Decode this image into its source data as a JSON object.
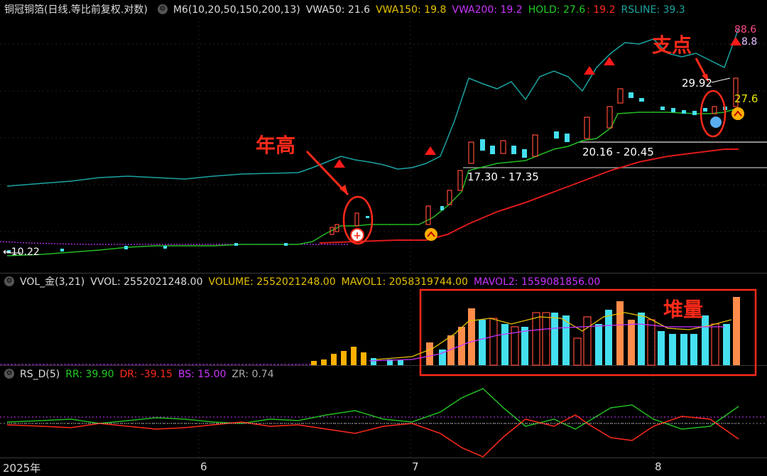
{
  "price_panel": {
    "title": "铜冠铜箔(日线.等比前复权.对数)",
    "indicator": "M6(10,20,50,150,200,13)",
    "vwa50": "VWA50: 21.6",
    "vwa150": "VWA150: 19.8",
    "vwa200": "VWA200: 19.2",
    "hold": "HOLD: 27.6",
    "hold2": ": 19.2",
    "rsline": "RSLINE: 39.3",
    "labels": {
      "price_low": "10.22",
      "range1": "17.30 - 17.35",
      "range2": "20.16 - 20.45",
      "price_high": "29.92",
      "right_top": "88.6",
      "right_top2": "8.8",
      "right_hold": "27.6"
    },
    "annotations": {
      "year_high": "年高",
      "support": "支点"
    }
  },
  "volume_panel": {
    "indicator": "VOL_金(3,21)",
    "vvol": "VVOL: 2552021248.00",
    "volume": "VOLUME: 2552021248.00",
    "mavol1": "MAVOL1: 2058319744.00",
    "mavol2": "MAVOL2: 1559081856.00",
    "annotation": "堆量"
  },
  "rs_panel": {
    "indicator": "RS_D(5)",
    "rr": "RR: 39.90",
    "dr": "DR: -39.15",
    "bs": "BS: 15.00",
    "zr": "ZR: 0.74"
  },
  "x_axis": {
    "labels": [
      "2025年",
      "6",
      "7",
      "8"
    ]
  },
  "colors": {
    "up": "#ff3b30",
    "down": "#44e0f0",
    "teal": "#1aa3a0",
    "green": "#22bb22",
    "red": "#dd1a1a",
    "orange": "#ff8c4a",
    "gold": "#ffb000",
    "magenta": "#cc33ff"
  },
  "chart_data": {
    "type": "line",
    "series": [
      {
        "name": "RSLINE",
        "values": [
          49,
          49,
          49.5,
          50,
          50.5,
          51,
          51.5,
          52,
          52,
          53,
          53.5,
          54,
          55,
          55.5,
          56,
          57,
          57,
          57.5,
          58,
          58,
          57,
          57.5,
          58,
          58,
          58.5,
          60,
          66,
          80,
          95,
          95,
          95,
          110,
          110,
          115,
          120,
          125,
          128,
          130,
          130,
          140,
          145,
          148,
          150,
          150,
          150,
          150,
          148,
          150,
          152,
          155,
          155
        ]
      },
      {
        "name": "VWA200",
        "values": [
          10.5,
          10.5,
          10.5,
          10.5,
          10.5,
          10.5,
          10.5,
          10.5,
          10.5,
          10.6,
          10.7,
          10.8,
          10.9,
          11,
          11.2,
          11.5,
          11.9,
          12.4,
          13,
          13.6,
          14.2,
          14.8,
          15.3,
          15.8,
          16.3,
          16.8,
          17.3,
          17.8,
          18.2,
          18.6,
          19.0,
          19.2,
          19.5,
          19.7,
          19.9,
          20.1,
          20.3,
          20.4,
          20.5,
          20.6,
          20.8,
          20.9,
          21
        ]
      }
    ]
  }
}
